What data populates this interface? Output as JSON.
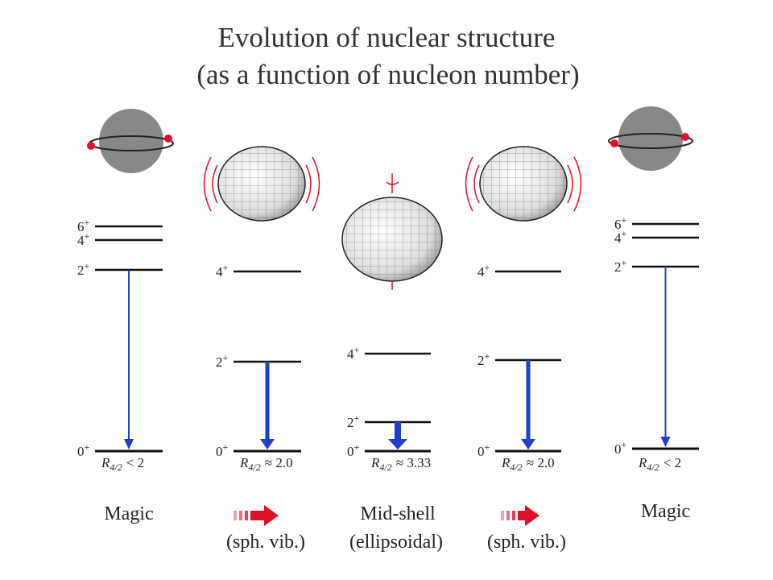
{
  "header": {
    "title_line1": "Evolution of nuclear structure",
    "title_line2": "(as a function of nucleon number)"
  },
  "columns": [
    {
      "levels": [
        {
          "spin": "0",
          "parity": "+"
        },
        {
          "spin": "2",
          "parity": "+"
        },
        {
          "spin": "4",
          "parity": "+"
        },
        {
          "spin": "6",
          "parity": "+"
        }
      ],
      "ratio": {
        "symbol": "R",
        "subscript": "4/2",
        "relation": "< 2"
      },
      "name": "Magic"
    },
    {
      "levels": [
        {
          "spin": "0",
          "parity": "+"
        },
        {
          "spin": "2",
          "parity": "+"
        },
        {
          "spin": "4",
          "parity": "+"
        }
      ],
      "ratio": {
        "symbol": "R",
        "subscript": "4/2",
        "relation": "≈ 2.0"
      },
      "note": "(sph. vib.)"
    },
    {
      "levels": [
        {
          "spin": "0",
          "parity": "+"
        },
        {
          "spin": "2",
          "parity": "+"
        },
        {
          "spin": "4",
          "parity": "+"
        }
      ],
      "ratio": {
        "symbol": "R",
        "subscript": "4/2",
        "relation": "≈ 3.33"
      },
      "name": "Mid-shell",
      "note": "(ellipsoidal)"
    },
    {
      "levels": [
        {
          "spin": "0",
          "parity": "+"
        },
        {
          "spin": "2",
          "parity": "+"
        },
        {
          "spin": "4",
          "parity": "+"
        }
      ],
      "ratio": {
        "symbol": "R",
        "subscript": "4/2",
        "relation": "≈ 2.0"
      },
      "note": "(sph. vib.)"
    },
    {
      "levels": [
        {
          "spin": "0",
          "parity": "+"
        },
        {
          "spin": "2",
          "parity": "+"
        },
        {
          "spin": "4",
          "parity": "+"
        },
        {
          "spin": "6",
          "parity": "+"
        }
      ],
      "ratio": {
        "symbol": "R",
        "subscript": "4/2",
        "relation": "< 2"
      },
      "name": "Magic"
    }
  ]
}
